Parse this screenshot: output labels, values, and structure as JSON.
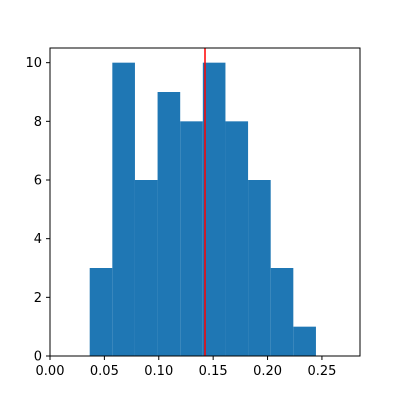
{
  "chart_data": {
    "type": "histogram",
    "bins": [
      {
        "x0": 0.0365,
        "x1": 0.0573,
        "count": 3
      },
      {
        "x0": 0.0573,
        "x1": 0.0781,
        "count": 10
      },
      {
        "x0": 0.0781,
        "x1": 0.0989,
        "count": 6
      },
      {
        "x0": 0.0989,
        "x1": 0.1197,
        "count": 9
      },
      {
        "x0": 0.1197,
        "x1": 0.1405,
        "count": 8
      },
      {
        "x0": 0.1405,
        "x1": 0.1613,
        "count": 10
      },
      {
        "x0": 0.1613,
        "x1": 0.1821,
        "count": 8
      },
      {
        "x0": 0.1821,
        "x1": 0.2029,
        "count": 6
      },
      {
        "x0": 0.2029,
        "x1": 0.2237,
        "count": 3
      },
      {
        "x0": 0.2237,
        "x1": 0.2445,
        "count": 1
      }
    ],
    "vline": {
      "x": 0.1425,
      "color": "#ff0000"
    },
    "bar_color": "#1f77b4",
    "xlim": [
      0.0,
      0.285
    ],
    "ylim": [
      0,
      10.5
    ],
    "xticks": [
      0.0,
      0.05,
      0.1,
      0.15,
      0.2,
      0.25
    ],
    "xtick_labels": [
      "0.00",
      "0.05",
      "0.10",
      "0.15",
      "0.20",
      "0.25"
    ],
    "yticks": [
      0,
      2,
      4,
      6,
      8,
      10
    ],
    "ytick_labels": [
      "0",
      "2",
      "4",
      "6",
      "8",
      "10"
    ],
    "grid": false,
    "title": "",
    "xlabel": "",
    "ylabel": ""
  }
}
